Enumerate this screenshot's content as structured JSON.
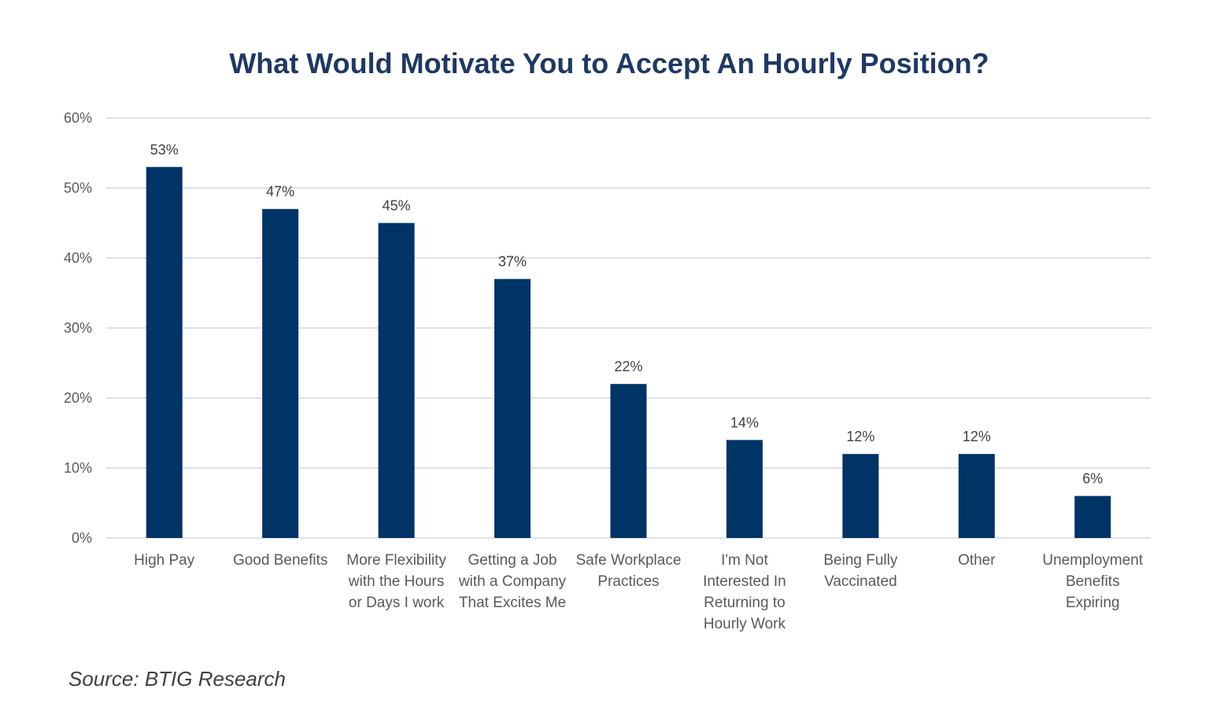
{
  "chart_data": {
    "type": "bar",
    "title": "What Would Motivate You to Accept An Hourly Position?",
    "categories": [
      [
        "High Pay"
      ],
      [
        "Good Benefits"
      ],
      [
        "More Flexibility",
        "with the Hours",
        "or Days I work"
      ],
      [
        "Getting a Job",
        "with a Company",
        "That Excites Me"
      ],
      [
        "Safe Workplace",
        "Practices"
      ],
      [
        "I'm Not",
        "Interested In",
        "Returning to",
        "Hourly Work"
      ],
      [
        "Being Fully",
        "Vaccinated"
      ],
      [
        "Other"
      ],
      [
        "Unemployment",
        "Benefits",
        "Expiring"
      ]
    ],
    "values": [
      53,
      47,
      45,
      37,
      22,
      14,
      12,
      12,
      6
    ],
    "data_labels": [
      "53%",
      "47%",
      "45%",
      "37%",
      "22%",
      "14%",
      "12%",
      "12%",
      "6%"
    ],
    "y_ticks": [
      0,
      10,
      20,
      30,
      40,
      50,
      60
    ],
    "y_tick_labels": [
      "0%",
      "10%",
      "20%",
      "30%",
      "40%",
      "50%",
      "60%"
    ],
    "ylim": [
      0,
      60
    ],
    "xlabel": "",
    "ylabel": "",
    "grid": true,
    "bar_color": "#003366",
    "legend": "none"
  },
  "source": "Source: BTIG Research"
}
